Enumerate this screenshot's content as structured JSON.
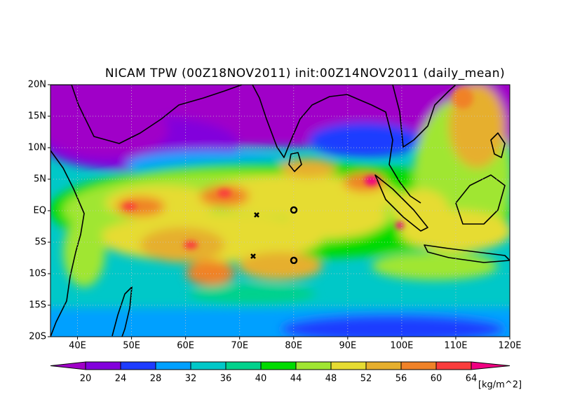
{
  "title": "NICAM TPW (00Z18NOV2011) init:00Z14NOV2011 (daily_mean)",
  "map": {
    "lat_labels": [
      "20N",
      "15N",
      "10N",
      "5N",
      "EQ",
      "5S",
      "10S",
      "15S",
      "20S"
    ],
    "lon_labels": [
      "40E",
      "50E",
      "60E",
      "70E",
      "80E",
      "90E",
      "100E",
      "110E",
      "120E"
    ]
  },
  "colorbar": {
    "ticks": [
      20,
      24,
      28,
      32,
      36,
      40,
      44,
      48,
      52,
      56,
      60,
      64
    ],
    "unit": "[kg/m^2]",
    "colors": [
      "#a000c8",
      "#8200dc",
      "#1e3cff",
      "#00a0ff",
      "#00c8c8",
      "#00d28c",
      "#00dc00",
      "#a0e632",
      "#e6dc32",
      "#e6af2d",
      "#f08228",
      "#fa3c3c",
      "#f00082"
    ]
  }
}
